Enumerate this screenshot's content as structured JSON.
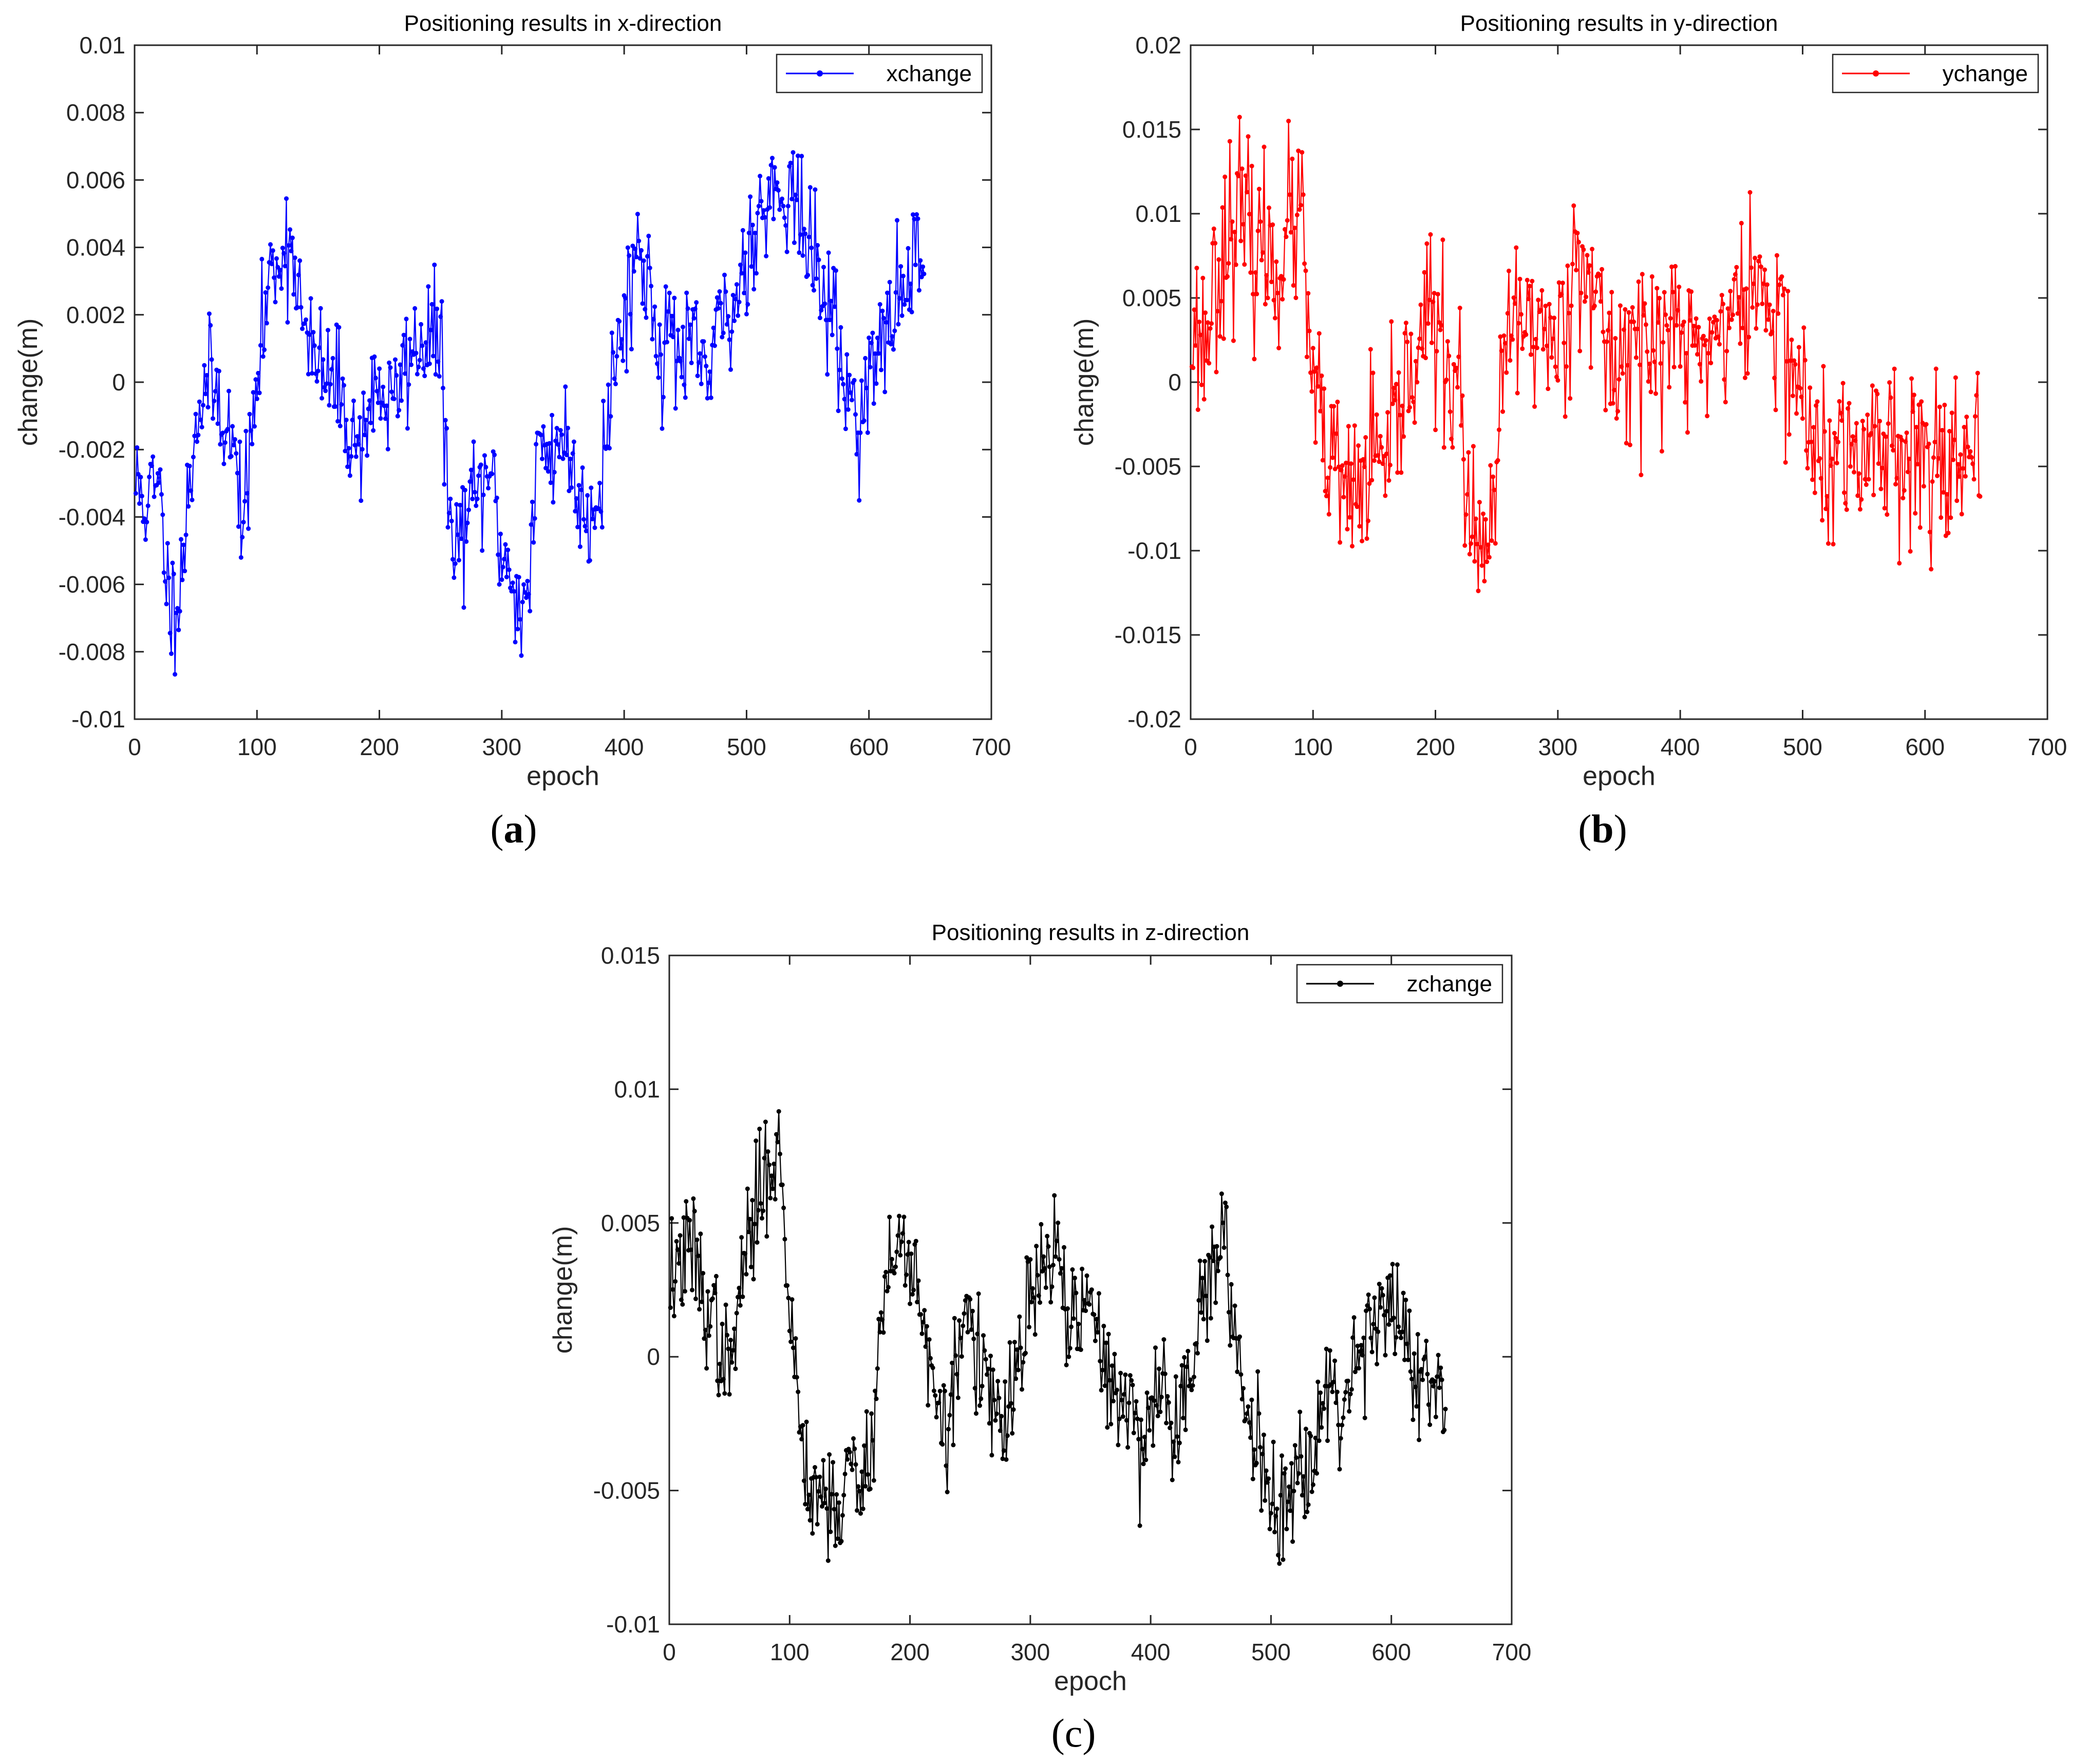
{
  "chart_data": [
    {
      "id": "a",
      "type": "line",
      "title": "Positioning results in x-direction",
      "xlabel": "epoch",
      "ylabel": "change(m)",
      "xlim": [
        0,
        700
      ],
      "ylim": [
        -0.01,
        0.01
      ],
      "xticks": [
        0,
        100,
        200,
        300,
        400,
        500,
        600,
        700
      ],
      "xtick_labels": [
        "0",
        "100",
        "200",
        "300",
        "400",
        "500",
        "600",
        "700"
      ],
      "yticks": [
        -0.01,
        -0.008,
        -0.006,
        -0.004,
        -0.002,
        0,
        0.002,
        0.004,
        0.006,
        0.008,
        0.01
      ],
      "ytick_labels": [
        "-0.01",
        "-0.008",
        "-0.006",
        "-0.004",
        "-0.002",
        "0",
        "0.002",
        "0.004",
        "0.006",
        "0.008",
        "0.01"
      ],
      "legend": "xchange",
      "legend_position": "top-right",
      "color": "#0000ff",
      "caption": "a",
      "series": [
        {
          "name": "xchange",
          "x": [
            0,
            10,
            20,
            30,
            40,
            50,
            60,
            70,
            80,
            90,
            100,
            110,
            120,
            130,
            140,
            150,
            160,
            170,
            180,
            190,
            200,
            210,
            220,
            230,
            240,
            250,
            260,
            270,
            280,
            290,
            300,
            310,
            320,
            330,
            340,
            350,
            360,
            370,
            380,
            390,
            400,
            410,
            420,
            430,
            440,
            450,
            460,
            470,
            480,
            490,
            500,
            510,
            520,
            530,
            540,
            550,
            560,
            570,
            580,
            590,
            600,
            610,
            620,
            630,
            640,
            645
          ],
          "y": [
            -0.003,
            -0.0035,
            -0.0032,
            -0.007,
            -0.005,
            -0.001,
            0,
            -0.0005,
            -0.002,
            -0.004,
            0,
            0.003,
            0.004,
            0.004,
            0.001,
            0.0005,
            0,
            -0.0005,
            -0.002,
            -0.001,
            0,
            -0.001,
            0.0005,
            0.001,
            0.0015,
            0.001,
            -0.0055,
            -0.004,
            -0.0035,
            -0.0025,
            -0.005,
            -0.006,
            -0.007,
            -0.002,
            -0.002,
            -0.0015,
            -0.003,
            -0.004,
            -0.003,
            0,
            0.002,
            0.004,
            0.003,
            0.001,
            0.0015,
            0.0005,
            0.001,
            0,
            0.002,
            0.002,
            0.004,
            0.005,
            0.0055,
            0.006,
            0.0055,
            0.004,
            0.003,
            0.002,
            0,
            -0.001,
            0,
            0.001,
            0.002,
            0.003,
            0.004,
            0.0045
          ]
        }
      ]
    },
    {
      "id": "b",
      "type": "line",
      "title": "Positioning results in y-direction",
      "xlabel": "epoch",
      "ylabel": "change(m)",
      "xlim": [
        0,
        700
      ],
      "ylim": [
        -0.02,
        0.02
      ],
      "xticks": [
        0,
        100,
        200,
        300,
        400,
        500,
        600,
        700
      ],
      "xtick_labels": [
        "0",
        "100",
        "200",
        "300",
        "400",
        "500",
        "600",
        "700"
      ],
      "yticks": [
        -0.02,
        -0.015,
        -0.01,
        -0.005,
        0,
        0.005,
        0.01,
        0.015,
        0.02
      ],
      "ytick_labels": [
        "-0.02",
        "-0.015",
        "-0.01",
        "-0.005",
        "0",
        "0.005",
        "0.01",
        "0.015",
        "0.02"
      ],
      "legend": "ychange",
      "legend_position": "top-right",
      "color": "#ff0000",
      "caption": "b",
      "series": [
        {
          "name": "ychange",
          "x": [
            0,
            10,
            20,
            30,
            40,
            50,
            60,
            70,
            80,
            90,
            100,
            110,
            120,
            130,
            140,
            150,
            160,
            170,
            180,
            190,
            200,
            210,
            220,
            230,
            240,
            250,
            260,
            270,
            280,
            290,
            300,
            310,
            320,
            330,
            340,
            350,
            360,
            370,
            380,
            390,
            400,
            410,
            420,
            430,
            440,
            450,
            460,
            470,
            480,
            490,
            500,
            510,
            520,
            530,
            540,
            550,
            560,
            570,
            580,
            590,
            600,
            610,
            620,
            630,
            640,
            645
          ],
          "y": [
            0.004,
            0.002,
            0.006,
            0.009,
            0.01,
            0.008,
            0.008,
            0.007,
            0.009,
            0.01,
            -0.001,
            -0.004,
            -0.006,
            -0.007,
            -0.006,
            -0.004,
            -0.006,
            -0.002,
            0.001,
            0.004,
            0.003,
            0.001,
            -0.001,
            -0.01,
            -0.011,
            -0.006,
            0.004,
            0.003,
            0.004,
            0.003,
            0.002,
            0.006,
            0.009,
            0.004,
            0.002,
            0.001,
            0.003,
            0.002,
            0.002,
            0.003,
            0.003,
            0.002,
            0.002,
            0.003,
            0.004,
            0.004,
            0.006,
            0.005,
            0.003,
            0.002,
            -0.001,
            -0.004,
            -0.006,
            -0.004,
            -0.005,
            -0.004,
            -0.003,
            -0.004,
            -0.003,
            -0.004,
            -0.005,
            -0.004,
            -0.003,
            -0.006,
            -0.005,
            -0.006
          ]
        }
      ]
    },
    {
      "id": "c",
      "type": "line",
      "title": "Positioning results in z-direction",
      "xlabel": "epoch",
      "ylabel": "change(m)",
      "xlim": [
        0,
        700
      ],
      "ylim": [
        -0.01,
        0.015
      ],
      "xticks": [
        0,
        100,
        200,
        300,
        400,
        500,
        600,
        700
      ],
      "xtick_labels": [
        "0",
        "100",
        "200",
        "300",
        "400",
        "500",
        "600",
        "700"
      ],
      "yticks": [
        -0.01,
        -0.005,
        0,
        0.005,
        0.01,
        0.015
      ],
      "ytick_labels": [
        "-0.01",
        "-0.005",
        "0",
        "0.005",
        "0.01",
        "0.015"
      ],
      "legend": "zchange",
      "legend_position": "top-right",
      "color": "#000000",
      "caption": "c",
      "series": [
        {
          "name": "zchange",
          "x": [
            0,
            10,
            20,
            30,
            40,
            50,
            60,
            70,
            80,
            90,
            100,
            110,
            120,
            130,
            140,
            150,
            160,
            170,
            180,
            190,
            200,
            210,
            220,
            230,
            240,
            250,
            260,
            270,
            280,
            290,
            300,
            310,
            320,
            330,
            340,
            350,
            360,
            370,
            380,
            390,
            400,
            410,
            420,
            430,
            440,
            450,
            460,
            470,
            480,
            490,
            500,
            510,
            520,
            530,
            540,
            550,
            560,
            570,
            580,
            590,
            600,
            610,
            620,
            630,
            640,
            645
          ],
          "y": [
            0.003,
            0.0035,
            0.004,
            0.002,
            0.001,
            -0.001,
            0.003,
            0.005,
            0.007,
            0.008,
            0.002,
            -0.003,
            -0.005,
            -0.005,
            -0.006,
            -0.004,
            -0.005,
            -0.002,
            0.003,
            0.004,
            0.004,
            0.002,
            -0.002,
            -0.003,
            0,
            0.002,
            -0.001,
            -0.002,
            -0.003,
            0,
            0.002,
            0.003,
            0.004,
            0.002,
            0.001,
            0.002,
            0,
            -0.001,
            -0.002,
            -0.003,
            -0.002,
            -0.001,
            -0.003,
            -0.001,
            0.002,
            0.003,
            0.004,
            0.001,
            -0.002,
            -0.003,
            -0.005,
            -0.006,
            -0.004,
            -0.004,
            -0.002,
            -0.001,
            -0.002,
            0,
            0.001,
            0.002,
            0.002,
            0.001,
            -0.001,
            -0.001,
            -0.002,
            -0.003
          ]
        }
      ]
    }
  ]
}
